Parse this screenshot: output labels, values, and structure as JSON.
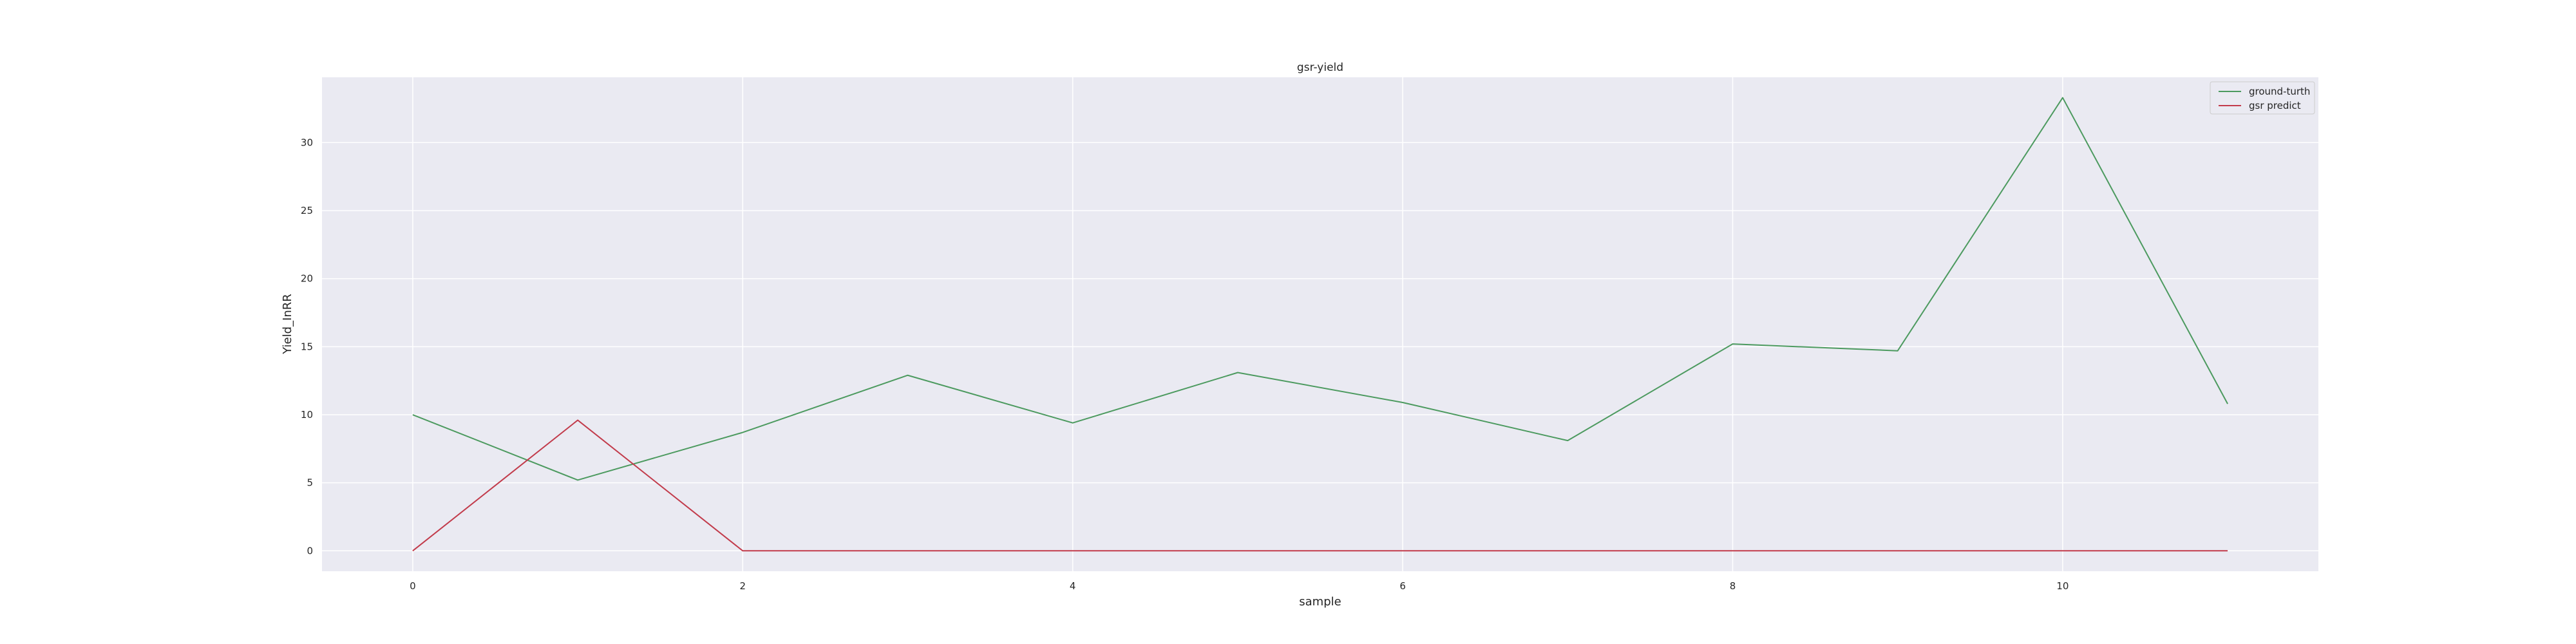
{
  "chart_data": {
    "type": "line",
    "title": "gsr-yield",
    "xlabel": "sample",
    "ylabel": "Yield_InRR",
    "x": [
      0,
      1,
      2,
      3,
      4,
      5,
      6,
      7,
      8,
      9,
      10,
      11
    ],
    "xlim": [
      -0.55,
      11.55
    ],
    "ylim": [
      -1.5,
      34.8
    ],
    "xticks": [
      0,
      2,
      4,
      6,
      8,
      10
    ],
    "yticks": [
      0,
      5,
      10,
      15,
      20,
      25,
      30
    ],
    "grid": true,
    "legend_position": "top-right",
    "series": [
      {
        "name": "ground-turth",
        "color": "#4c9a5f",
        "values": [
          10.0,
          5.2,
          8.7,
          12.9,
          9.4,
          13.1,
          10.9,
          8.1,
          15.2,
          14.7,
          33.3,
          10.8
        ]
      },
      {
        "name": "gsr predict",
        "color": "#c23b4b",
        "values": [
          0.0,
          9.6,
          0.0,
          0.0,
          0.0,
          0.0,
          0.0,
          0.0,
          0.0,
          0.0,
          0.0,
          0.0
        ]
      }
    ]
  }
}
